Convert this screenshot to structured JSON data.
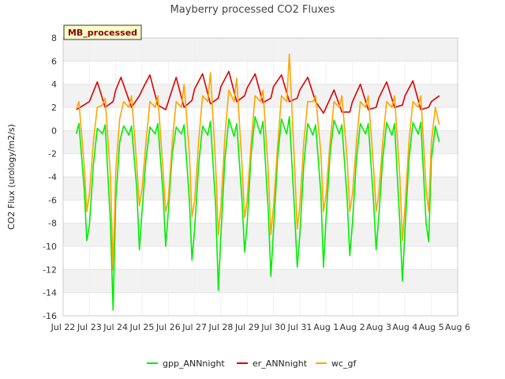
{
  "chart_data": {
    "type": "line",
    "title": "Mayberry processed CO2 Fluxes",
    "xlabel": "",
    "ylabel": "CO2 Flux (urology/m2/s)",
    "badge": "MB_processed",
    "xlim": [
      0,
      15
    ],
    "ylim": [
      -16,
      8
    ],
    "yticks": [
      -16,
      -14,
      -12,
      -10,
      -8,
      -6,
      -4,
      -2,
      0,
      2,
      4,
      6,
      8
    ],
    "xtick_positions": [
      0,
      1,
      2,
      3,
      4,
      5,
      6,
      7,
      8,
      9,
      10,
      11,
      12,
      13,
      14,
      15
    ],
    "xtick_labels": [
      "Jul 22",
      "Jul 23",
      "Jul 24",
      "Jul 25",
      "Jul 26",
      "Jul 27",
      "Jul 28",
      "Jul 29",
      "Jul 30",
      "Jul 31",
      "Aug 1",
      "Aug 2",
      "Aug 3",
      "Aug 4",
      "Aug 5",
      "Aug 6"
    ],
    "series": [
      {
        "name": "gpp_ANNnight",
        "color": "#00ee00",
        "x": [
          0.5,
          0.6,
          0.8,
          0.9,
          1.0,
          1.15,
          1.3,
          1.5,
          1.6,
          1.8,
          1.9,
          2.0,
          2.15,
          2.3,
          2.5,
          2.6,
          2.8,
          2.9,
          3.0,
          3.15,
          3.3,
          3.5,
          3.6,
          3.8,
          3.9,
          4.0,
          4.15,
          4.3,
          4.5,
          4.6,
          4.8,
          4.9,
          5.0,
          5.15,
          5.3,
          5.5,
          5.6,
          5.8,
          5.9,
          6.0,
          6.15,
          6.3,
          6.5,
          6.6,
          6.8,
          6.9,
          7.0,
          7.15,
          7.3,
          7.5,
          7.6,
          7.8,
          7.9,
          8.0,
          8.15,
          8.3,
          8.5,
          8.6,
          8.8,
          8.9,
          9.0,
          9.15,
          9.3,
          9.5,
          9.6,
          9.8,
          9.9,
          10.0,
          10.15,
          10.3,
          10.5,
          10.6,
          10.8,
          10.9,
          11.0,
          11.15,
          11.3,
          11.5,
          11.6,
          11.8,
          11.9,
          12.0,
          12.15,
          12.3,
          12.5,
          12.6,
          12.8,
          12.9,
          13.0,
          13.15,
          13.3,
          13.5,
          13.6,
          13.8,
          13.9,
          14.0,
          14.15,
          14.3
        ],
        "y": [
          -0.3,
          0.6,
          -5.0,
          -9.5,
          -8.2,
          -3.0,
          0.2,
          -0.3,
          0.5,
          -8.0,
          -15.5,
          -6.0,
          -1.0,
          0.4,
          -0.4,
          0.4,
          -5.0,
          -10.3,
          -7.0,
          -2.5,
          0.3,
          -0.3,
          0.6,
          -5.5,
          -10.0,
          -7.0,
          -2.0,
          0.3,
          -0.3,
          0.5,
          -6.0,
          -11.2,
          -8.5,
          -3.0,
          0.4,
          -0.4,
          0.8,
          -6.5,
          -13.8,
          -9.0,
          -2.5,
          1.0,
          -0.5,
          0.6,
          -6.0,
          -10.5,
          -8.0,
          -2.0,
          1.2,
          -0.3,
          0.8,
          -7.0,
          -12.6,
          -8.5,
          -2.5,
          1.0,
          -0.3,
          1.2,
          -7.0,
          -11.8,
          -9.0,
          -3.0,
          0.6,
          -0.4,
          0.5,
          -5.5,
          -11.8,
          -7.5,
          -2.0,
          0.9,
          -0.3,
          0.5,
          -6.0,
          -10.8,
          -8.0,
          -2.5,
          0.6,
          -0.3,
          0.6,
          -6.0,
          -10.3,
          -7.5,
          -2.5,
          0.7,
          -0.4,
          0.6,
          -8.0,
          -13.0,
          -8.5,
          -2.5,
          0.7,
          -0.3,
          0.7,
          -8.0,
          -9.6,
          -2.5,
          0.4,
          -1.0
        ]
      },
      {
        "name": "er_ANNnight",
        "color": "#dd0000",
        "x": [
          0.5,
          1.0,
          1.3,
          1.6,
          1.9,
          2.0,
          2.2,
          2.6,
          2.9,
          3.0,
          3.3,
          3.6,
          3.9,
          4.0,
          4.3,
          4.6,
          4.9,
          5.0,
          5.3,
          5.6,
          5.9,
          6.0,
          6.3,
          6.6,
          6.9,
          7.0,
          7.3,
          7.6,
          7.9,
          8.0,
          8.3,
          8.6,
          8.9,
          9.0,
          9.3,
          9.6,
          9.9,
          10.0,
          10.3,
          10.6,
          10.9,
          11.0,
          11.3,
          11.6,
          11.9,
          12.0,
          12.3,
          12.6,
          12.9,
          13.0,
          13.3,
          13.6,
          13.9,
          14.0,
          14.3
        ],
        "y": [
          1.8,
          2.5,
          4.2,
          2.0,
          2.5,
          3.5,
          4.6,
          2.0,
          3.0,
          3.5,
          4.8,
          2.2,
          1.8,
          2.5,
          4.6,
          2.0,
          2.6,
          3.6,
          4.9,
          2.3,
          2.8,
          3.8,
          5.1,
          2.5,
          3.0,
          3.7,
          4.9,
          2.4,
          2.8,
          3.8,
          4.8,
          2.5,
          2.8,
          3.5,
          4.6,
          2.5,
          1.5,
          2.0,
          3.5,
          1.6,
          1.6,
          2.5,
          4.0,
          1.8,
          2.0,
          2.8,
          4.2,
          2.0,
          2.2,
          3.0,
          4.3,
          1.8,
          2.0,
          2.5,
          3.0
        ]
      },
      {
        "name": "wc_gf",
        "color": "#ffa500",
        "x": [
          0.5,
          0.6,
          0.8,
          0.9,
          1.0,
          1.15,
          1.3,
          1.5,
          1.6,
          1.8,
          1.9,
          2.0,
          2.15,
          2.3,
          2.5,
          2.6,
          2.8,
          2.9,
          3.0,
          3.15,
          3.3,
          3.5,
          3.6,
          3.8,
          3.9,
          4.0,
          4.15,
          4.3,
          4.5,
          4.6,
          4.8,
          4.9,
          5.0,
          5.15,
          5.3,
          5.5,
          5.6,
          5.8,
          5.9,
          6.0,
          6.15,
          6.3,
          6.5,
          6.6,
          6.8,
          6.9,
          7.0,
          7.15,
          7.3,
          7.5,
          7.6,
          7.8,
          7.9,
          8.0,
          8.15,
          8.3,
          8.5,
          8.6,
          8.8,
          8.9,
          9.0,
          9.15,
          9.3,
          9.5,
          9.6,
          9.8,
          9.9,
          10.0,
          10.15,
          10.3,
          10.5,
          10.6,
          10.8,
          10.9,
          11.0,
          11.15,
          11.3,
          11.5,
          11.6,
          11.8,
          11.9,
          12.0,
          12.15,
          12.3,
          12.5,
          12.6,
          12.8,
          12.9,
          13.0,
          13.15,
          13.3,
          13.5,
          13.6,
          13.8,
          13.9,
          14.0,
          14.15,
          14.3
        ],
        "y": [
          1.8,
          2.5,
          -3.0,
          -7.0,
          -5.5,
          -1.0,
          2.0,
          2.2,
          2.8,
          -4.0,
          -12.0,
          -3.5,
          1.0,
          2.5,
          2.0,
          3.0,
          -3.0,
          -6.5,
          -5.0,
          -1.0,
          2.5,
          2.0,
          3.0,
          -3.5,
          -7.0,
          -6.0,
          -1.0,
          2.5,
          2.0,
          4.0,
          -2.0,
          -7.5,
          -6.0,
          -1.0,
          3.0,
          2.5,
          5.0,
          -3.0,
          -9.0,
          -6.5,
          -0.5,
          3.5,
          2.5,
          4.5,
          -3.0,
          -7.5,
          -6.0,
          -1.0,
          3.0,
          2.5,
          3.5,
          -3.5,
          -9.0,
          -6.5,
          -1.5,
          3.0,
          2.5,
          6.6,
          -3.0,
          -8.5,
          -6.5,
          -1.0,
          2.5,
          2.5,
          3.0,
          -2.0,
          -7.0,
          -5.5,
          -1.0,
          2.5,
          2.0,
          3.0,
          -2.5,
          -7.0,
          -5.5,
          -1.0,
          2.5,
          2.0,
          3.0,
          -3.0,
          -7.0,
          -5.5,
          -1.0,
          2.5,
          2.0,
          3.0,
          -4.0,
          -9.5,
          -6.5,
          -1.0,
          2.5,
          2.0,
          3.0,
          -5.0,
          -7.0,
          -1.0,
          2.0,
          0.5
        ]
      }
    ],
    "grid": true,
    "legend_position": "bottom"
  }
}
